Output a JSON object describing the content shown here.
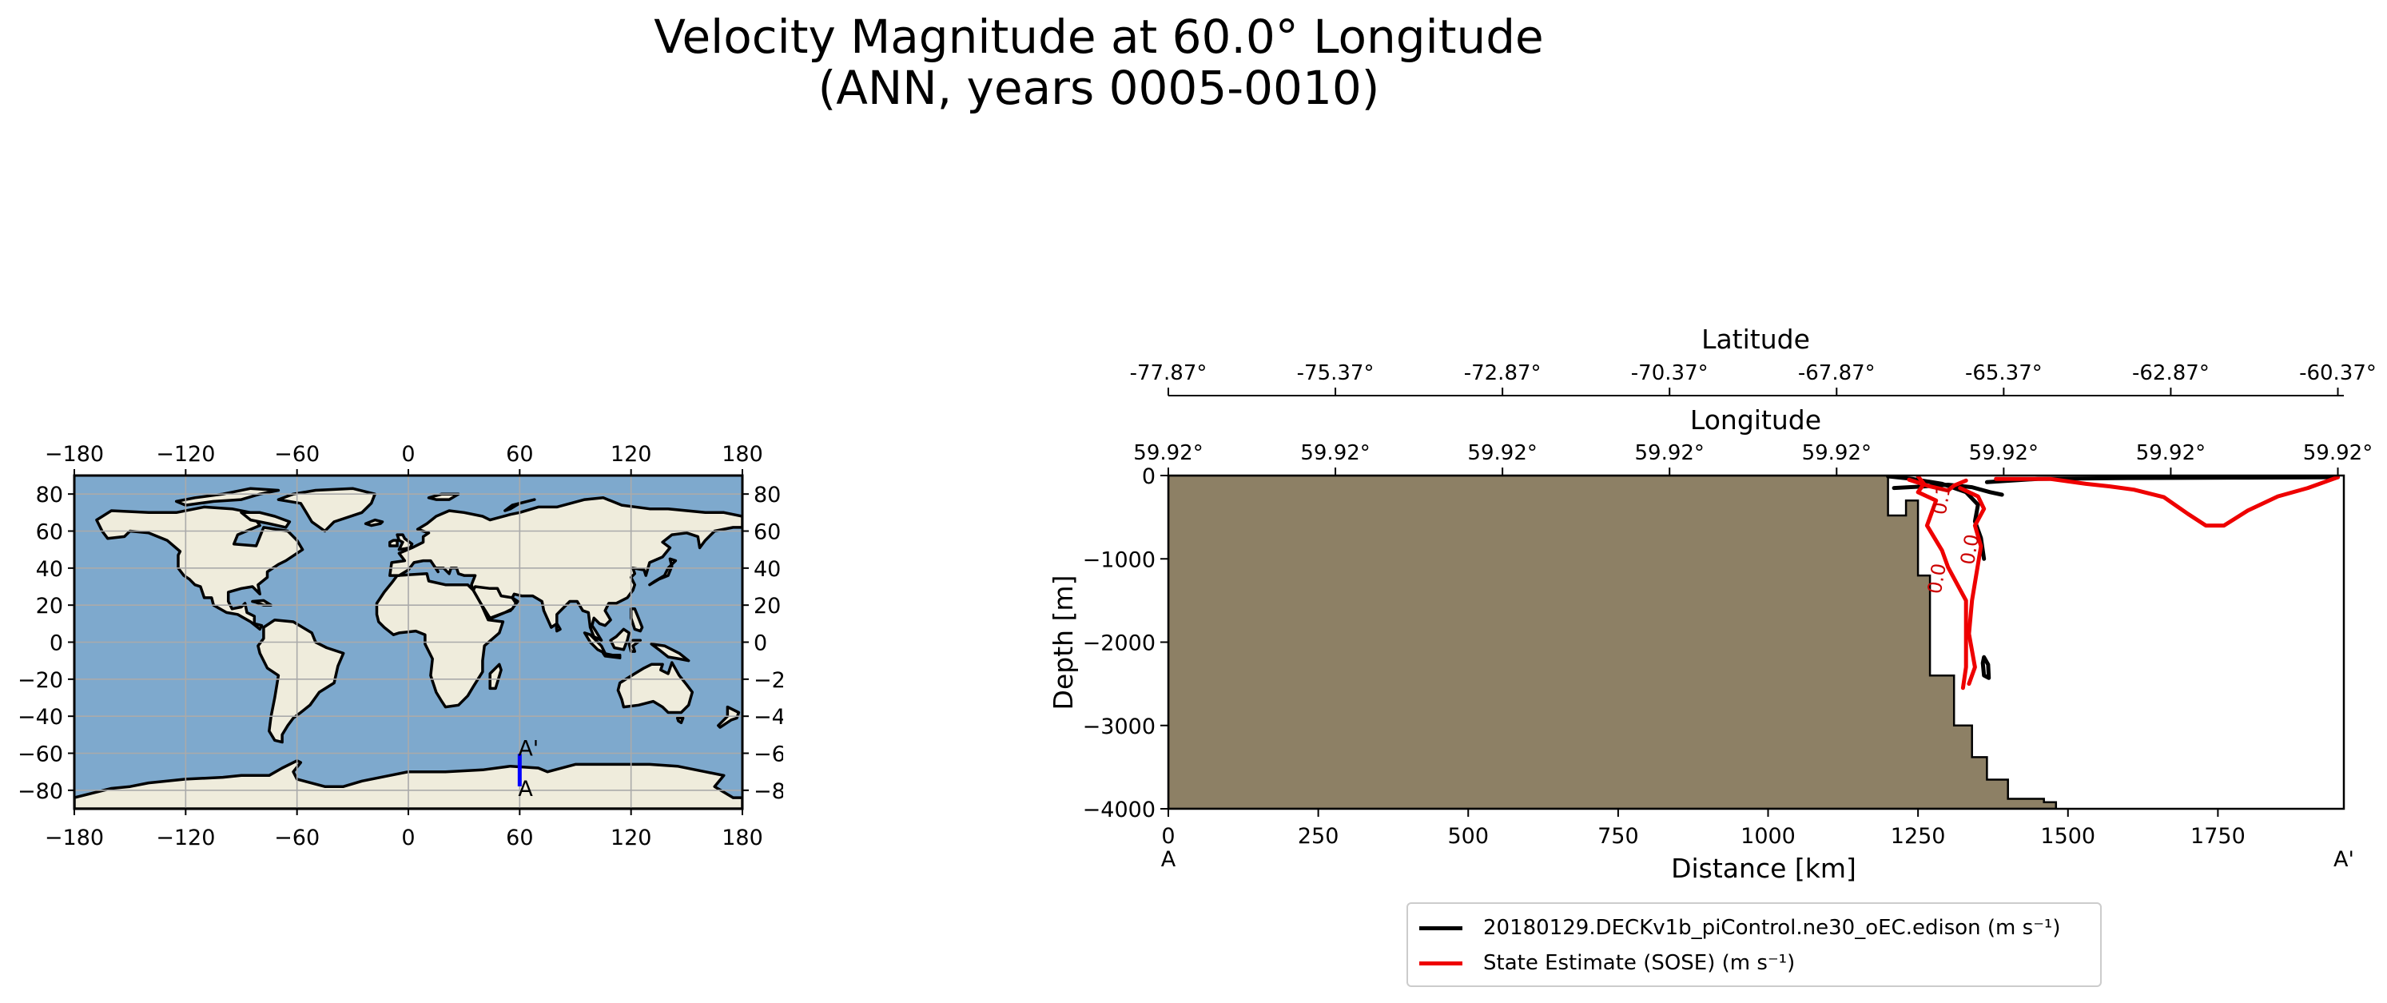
{
  "title": {
    "line1": "Velocity Magnitude at 60.0° Longitude",
    "line2": "(ANN, years 0005-0010)"
  },
  "map": {
    "lon_ticks": [
      -180,
      -120,
      -60,
      0,
      60,
      120,
      180
    ],
    "lon_tick_labels": [
      "−180",
      "−120",
      "−60",
      "0",
      "60",
      "120",
      "180"
    ],
    "lat_ticks": [
      80,
      60,
      40,
      20,
      0,
      -20,
      -40,
      -60,
      -80
    ],
    "lat_tick_labels": [
      "80",
      "60",
      "40",
      "20",
      "0",
      "−20",
      "−40",
      "−60",
      "−80"
    ],
    "extent": {
      "lon": [
        -180,
        180
      ],
      "lat": [
        -90,
        90
      ]
    },
    "transect_lon": 60,
    "transect_lat": [
      -77.87,
      -60.37
    ],
    "transect_label_start": "A",
    "transect_label_end": "A'",
    "ocean_color": "#7ea9cd",
    "land_color": "#efecdc",
    "ice_color": "#e9eff5",
    "transect_color": "#0000ff"
  },
  "chart_data": {
    "type": "contour",
    "xlabel": "Distance [km]",
    "ylabel": "Depth [m]",
    "xlim": [
      0,
      1960
    ],
    "ylim": [
      -4000,
      0
    ],
    "x_ticks": [
      0,
      250,
      500,
      750,
      1000,
      1250,
      1500,
      1750
    ],
    "x_tick_labels": [
      "0",
      "250",
      "500",
      "750",
      "1000",
      "1250",
      "1500",
      "1750"
    ],
    "y_ticks": [
      0,
      -1000,
      -2000,
      -3000,
      -4000
    ],
    "y_tick_labels": [
      "0",
      "−1000",
      "−2000",
      "−3000",
      "−4000"
    ],
    "section_start_label": "A",
    "section_end_label": "A'",
    "top_axis_1": {
      "label": "Latitude",
      "tick_labels": [
        "-77.87°",
        "-75.37°",
        "-72.87°",
        "-70.37°",
        "-67.87°",
        "-65.37°",
        "-62.87°",
        "-60.37°"
      ]
    },
    "top_axis_2": {
      "label": "Longitude",
      "tick_labels": [
        "59.92°",
        "59.92°",
        "59.92°",
        "59.92°",
        "59.92°",
        "59.92°",
        "59.92°",
        "59.92°"
      ]
    },
    "bathymetry": [
      [
        0,
        0
      ],
      [
        1200,
        0
      ],
      [
        1200,
        -480
      ],
      [
        1230,
        -480
      ],
      [
        1230,
        -300
      ],
      [
        1250,
        -300
      ],
      [
        1250,
        -1200
      ],
      [
        1270,
        -1200
      ],
      [
        1270,
        -2400
      ],
      [
        1310,
        -2400
      ],
      [
        1310,
        -3000
      ],
      [
        1340,
        -3000
      ],
      [
        1340,
        -3380
      ],
      [
        1365,
        -3380
      ],
      [
        1365,
        -3650
      ],
      [
        1400,
        -3650
      ],
      [
        1400,
        -3880
      ],
      [
        1460,
        -3880
      ],
      [
        1460,
        -3920
      ],
      [
        1480,
        -3920
      ],
      [
        1480,
        -4000
      ],
      [
        0,
        -4000
      ]
    ],
    "contour_labels": [
      {
        "text": "0.1",
        "x": 1300,
        "y": -300,
        "rotation": -80
      },
      {
        "text": "0.0",
        "x": 1347,
        "y": -900,
        "rotation": -80
      },
      {
        "text": "0.0",
        "x": 1292,
        "y": -1250,
        "rotation": -80
      }
    ],
    "series": [
      {
        "name": "20180129.DECKv1b_piControl.ne30_oEC.edison",
        "units": "(m s⁻¹)",
        "color": "#000000",
        "lines": [
          [
            [
              1200,
              -10
            ],
            [
              1240,
              -40
            ],
            [
              1290,
              -100
            ],
            [
              1330,
              -200
            ],
            [
              1350,
              -350
            ],
            [
              1345,
              -550
            ],
            [
              1355,
              -750
            ],
            [
              1360,
              -1000
            ]
          ],
          [
            [
              1210,
              -150
            ],
            [
              1260,
              -130
            ],
            [
              1300,
              -110
            ],
            [
              1340,
              -140
            ],
            [
              1370,
              -200
            ],
            [
              1390,
              -230
            ]
          ],
          [
            [
              1365,
              -80
            ],
            [
              1450,
              -40
            ],
            [
              1600,
              -30
            ],
            [
              1800,
              -25
            ],
            [
              1950,
              -20
            ]
          ],
          [
            [
              1360,
              -2180
            ],
            [
              1367,
              -2270
            ],
            [
              1368,
              -2430
            ],
            [
              1360,
              -2400
            ],
            [
              1358,
              -2250
            ],
            [
              1360,
              -2180
            ]
          ]
        ]
      },
      {
        "name": "State Estimate (SOSE)",
        "units": "(m s⁻¹)",
        "color": "#ee0000",
        "lines": [
          [
            [
              1250,
              -10
            ],
            [
              1260,
              -100
            ],
            [
              1250,
              -200
            ],
            [
              1280,
              -300
            ],
            [
              1265,
              -600
            ],
            [
              1290,
              -900
            ],
            [
              1300,
              -1100
            ],
            [
              1330,
              -1500
            ],
            [
              1330,
              -2300
            ],
            [
              1325,
              -2550
            ]
          ],
          [
            [
              1235,
              -50
            ],
            [
              1270,
              -130
            ],
            [
              1300,
              -180
            ],
            [
              1310,
              -120
            ],
            [
              1330,
              -60
            ]
          ],
          [
            [
              1320,
              -150
            ],
            [
              1350,
              -250
            ],
            [
              1360,
              -400
            ],
            [
              1345,
              -600
            ],
            [
              1355,
              -850
            ],
            [
              1340,
              -1500
            ],
            [
              1335,
              -1900
            ],
            [
              1345,
              -2300
            ],
            [
              1335,
              -2500
            ]
          ],
          [
            [
              1380,
              -40
            ],
            [
              1470,
              -40
            ],
            [
              1530,
              -100
            ],
            [
              1570,
              -130
            ],
            [
              1610,
              -170
            ],
            [
              1660,
              -260
            ],
            [
              1700,
              -460
            ],
            [
              1730,
              -600
            ],
            [
              1760,
              -600
            ],
            [
              1800,
              -420
            ],
            [
              1850,
              -250
            ],
            [
              1900,
              -150
            ],
            [
              1950,
              -20
            ]
          ]
        ]
      }
    ]
  }
}
